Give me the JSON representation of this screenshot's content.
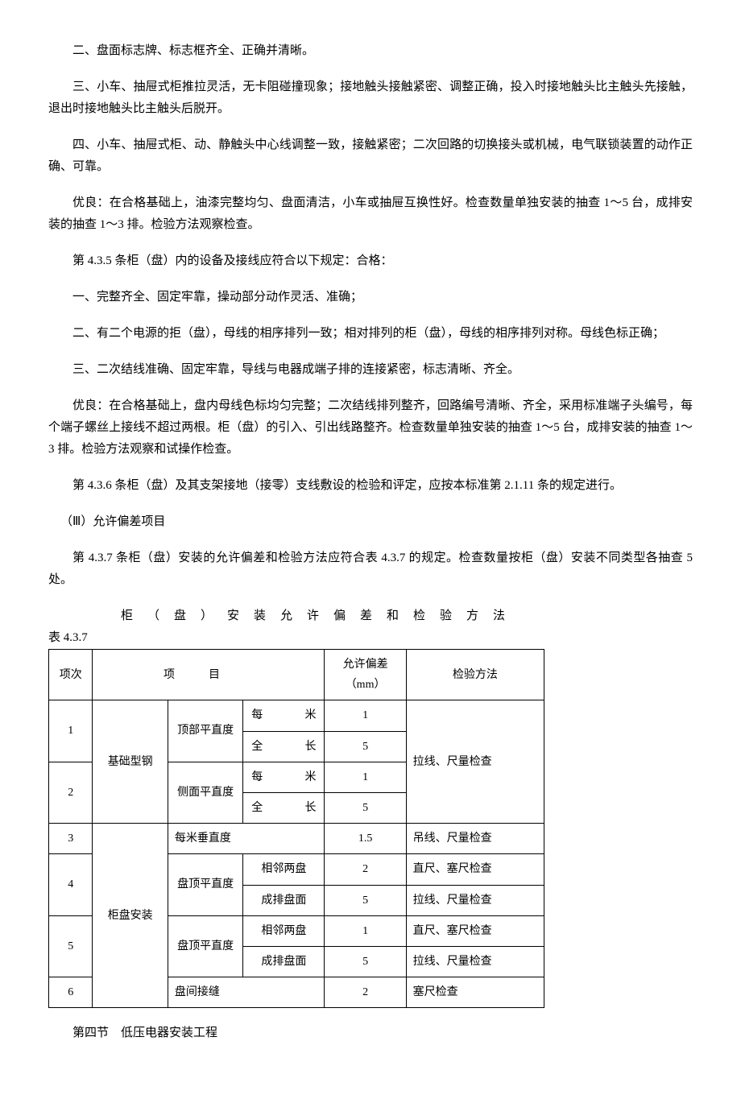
{
  "paragraphs": {
    "p1": "二、盘面标志牌、标志框齐全、正确并清晰。",
    "p2": "三、小车、抽屉式柜推拉灵活，无卡阻碰撞现象；接地触头接触紧密、调整正确，投入时接地触头比主触头先接触，退出时接地触头比主触头后脱开。",
    "p3": "四、小车、抽屉式柜、动、静触头中心线调整一致，接触紧密；二次回路的切换接头或机械，电气联锁装置的动作正确、可靠。",
    "p4": "优良：在合格基础上，油漆完整均匀、盘面清洁，小车或抽屉互换性好。检查数量单独安装的抽查 1～5 台，成排安装的抽查 1～3 排。检验方法观察检查。",
    "p5": "第 4.3.5 条柜（盘）内的设备及接线应符合以下规定：合格：",
    "p6": "一、完整齐全、固定牢靠，操动部分动作灵活、准确；",
    "p7": "二、有二个电源的拒（盘），母线的相序排列一致；相对排列的柜（盘），母线的相序排列对称。母线色标正确；",
    "p8": "三、二次结线准确、固定牢靠，导线与电器成端子排的连接紧密，标志清晰、齐全。",
    "p9": "优良：在合格基础上，盘内母线色标均匀完整；二次结线排列整齐，回路编号清晰、齐全，采用标准端子头编号，每个端子螺丝上接线不超过两根。柜（盘）的引入、引出线路整齐。检查数量单独安装的抽查 1～5 台，成排安装的抽查 1～3 排。检验方法观察和试操作检查。",
    "p10": "第 4.3.6 条柜（盘）及其支架接地（接零）支线敷设的检验和评定，应按本标准第 2.1.11 条的规定进行。",
    "p11": "（Ⅲ）允许偏差项目",
    "p12": "第 4.3.7 条柜（盘）安装的允许偏差和检验方法应符合表 4.3.7 的规定。检查数量按柜（盘）安装不同类型各抽查 5 处。",
    "table_title": "柜（盘）安装允许偏差和检验方法",
    "table_caption": "表 4.3.7",
    "p13": "第四节　低压电器安装工程"
  },
  "table": {
    "headers": {
      "col1": "项次",
      "col2": "项目",
      "col3_line1": "允许偏差",
      "col3_line2": "（mm）",
      "col4": "检验方法"
    },
    "rows": [
      {
        "num": "1",
        "group": "基础型钢",
        "sub": "顶部平直度",
        "subsub": "每米",
        "allow": "1",
        "method": "拉线、尺量检查"
      },
      {
        "subsub": "全长",
        "allow": "5"
      },
      {
        "num": "2",
        "sub": "侧面平直度",
        "subsub": "每米",
        "allow": "1"
      },
      {
        "subsub": "全长",
        "allow": "5"
      },
      {
        "num": "3",
        "group": "柜盘安装",
        "sub_full": "每米垂直度",
        "allow": "1.5",
        "method": "吊线、尺量检查"
      },
      {
        "num": "4",
        "sub": "盘顶平直度",
        "subsub": "相邻两盘",
        "allow": "2",
        "method": "直尺、塞尺检查"
      },
      {
        "subsub": "成排盘面",
        "allow": "5",
        "method": "拉线、尺量检查"
      },
      {
        "num": "5",
        "sub": "盘顶平直度",
        "subsub": "相邻两盘",
        "allow": "1",
        "method": "直尺、塞尺检查"
      },
      {
        "subsub": "成排盘面",
        "allow": "5",
        "method": "拉线、尺量检查"
      },
      {
        "num": "6",
        "sub_full": "盘间接缝",
        "allow": "2",
        "method": "塞尺检查"
      }
    ]
  }
}
